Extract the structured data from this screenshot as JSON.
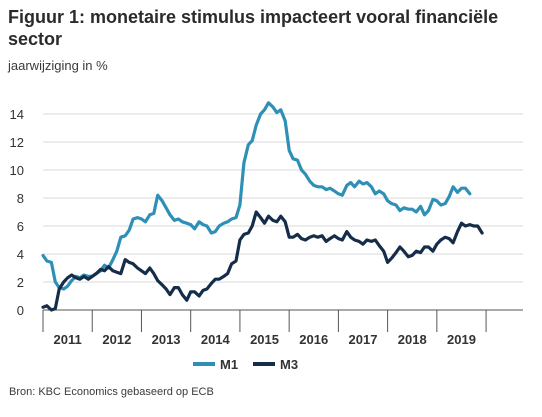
{
  "chart_data": {
    "type": "line",
    "title": "Figuur 1: monetaire stimulus impacteert vooral financiële sector",
    "subtitle": "jaarwijziging in %",
    "source": "Bron: KBC Economics gebaseerd op ECB",
    "ylim": [
      0,
      15
    ],
    "yticks": [
      "0",
      "2",
      "4",
      "6",
      "8",
      "10",
      "12",
      "14"
    ],
    "xlim": [
      2010.0,
      2019.75
    ],
    "year_labels": [
      "2011",
      "2012",
      "2013",
      "2014",
      "2015",
      "2016",
      "2017",
      "2018",
      "2019"
    ],
    "grid": "horizontal",
    "legend_position": "bottom",
    "series": [
      {
        "name": "M1",
        "color": "#2e8fb7",
        "points": [
          [
            2010.0,
            3.9
          ],
          [
            2010.08,
            3.5
          ],
          [
            2010.17,
            3.4
          ],
          [
            2010.25,
            2.0
          ],
          [
            2010.33,
            1.6
          ],
          [
            2010.42,
            1.5
          ],
          [
            2010.5,
            1.7
          ],
          [
            2010.58,
            2.1
          ],
          [
            2010.67,
            2.4
          ],
          [
            2010.75,
            2.3
          ],
          [
            2010.83,
            2.5
          ],
          [
            2010.92,
            2.4
          ],
          [
            2011.0,
            2.4
          ],
          [
            2011.08,
            2.6
          ],
          [
            2011.17,
            2.8
          ],
          [
            2011.25,
            3.2
          ],
          [
            2011.33,
            3.0
          ],
          [
            2011.42,
            3.6
          ],
          [
            2011.5,
            4.2
          ],
          [
            2011.58,
            5.2
          ],
          [
            2011.67,
            5.3
          ],
          [
            2011.75,
            5.7
          ],
          [
            2011.83,
            6.5
          ],
          [
            2011.92,
            6.6
          ],
          [
            2012.0,
            6.5
          ],
          [
            2012.08,
            6.3
          ],
          [
            2012.17,
            6.8
          ],
          [
            2012.25,
            6.9
          ],
          [
            2012.33,
            8.2
          ],
          [
            2012.42,
            7.8
          ],
          [
            2012.5,
            7.3
          ],
          [
            2012.58,
            6.8
          ],
          [
            2012.67,
            6.4
          ],
          [
            2012.75,
            6.5
          ],
          [
            2012.83,
            6.3
          ],
          [
            2012.92,
            6.2
          ],
          [
            2013.0,
            6.1
          ],
          [
            2013.08,
            5.8
          ],
          [
            2013.17,
            6.3
          ],
          [
            2013.25,
            6.1
          ],
          [
            2013.33,
            6.0
          ],
          [
            2013.42,
            5.5
          ],
          [
            2013.5,
            5.6
          ],
          [
            2013.58,
            6.0
          ],
          [
            2013.67,
            6.2
          ],
          [
            2013.75,
            6.3
          ],
          [
            2013.83,
            6.5
          ],
          [
            2013.92,
            6.6
          ],
          [
            2014.0,
            7.5
          ],
          [
            2014.08,
            10.5
          ],
          [
            2014.17,
            11.8
          ],
          [
            2014.25,
            12.1
          ],
          [
            2014.33,
            13.2
          ],
          [
            2014.42,
            14.0
          ],
          [
            2014.5,
            14.3
          ],
          [
            2014.58,
            14.8
          ],
          [
            2014.67,
            14.5
          ],
          [
            2014.75,
            14.1
          ],
          [
            2014.83,
            14.3
          ],
          [
            2014.92,
            13.5
          ],
          [
            2015.0,
            11.4
          ],
          [
            2015.08,
            10.8
          ],
          [
            2015.17,
            10.7
          ],
          [
            2015.25,
            10.0
          ],
          [
            2015.33,
            9.7
          ],
          [
            2015.42,
            9.2
          ],
          [
            2015.5,
            8.9
          ],
          [
            2015.58,
            8.8
          ],
          [
            2015.67,
            8.8
          ],
          [
            2015.75,
            8.6
          ],
          [
            2015.83,
            8.7
          ],
          [
            2015.92,
            8.5
          ],
          [
            2016.0,
            8.3
          ],
          [
            2016.08,
            8.2
          ],
          [
            2016.17,
            8.9
          ],
          [
            2016.25,
            9.1
          ],
          [
            2016.33,
            8.8
          ],
          [
            2016.42,
            9.2
          ],
          [
            2016.5,
            9.0
          ],
          [
            2016.58,
            9.1
          ],
          [
            2016.67,
            8.8
          ],
          [
            2016.75,
            8.3
          ],
          [
            2016.83,
            8.5
          ],
          [
            2016.92,
            8.3
          ],
          [
            2017.0,
            7.8
          ],
          [
            2017.08,
            7.6
          ],
          [
            2017.17,
            7.5
          ],
          [
            2017.25,
            7.1
          ],
          [
            2017.33,
            7.3
          ],
          [
            2017.42,
            7.2
          ],
          [
            2017.5,
            7.2
          ],
          [
            2017.58,
            7.0
          ],
          [
            2017.67,
            7.4
          ],
          [
            2017.75,
            6.8
          ],
          [
            2017.83,
            7.1
          ],
          [
            2017.92,
            7.9
          ],
          [
            2018.0,
            7.8
          ],
          [
            2018.08,
            7.5
          ],
          [
            2018.17,
            7.6
          ],
          [
            2018.25,
            8.1
          ],
          [
            2018.33,
            8.8
          ],
          [
            2018.42,
            8.4
          ],
          [
            2018.5,
            8.7
          ],
          [
            2018.58,
            8.7
          ],
          [
            2018.67,
            8.3
          ]
        ]
      },
      {
        "name": "M3",
        "color": "#162d4a",
        "points": [
          [
            2010.0,
            0.2
          ],
          [
            2010.08,
            0.3
          ],
          [
            2010.17,
            0.0
          ],
          [
            2010.25,
            0.1
          ],
          [
            2010.33,
            1.5
          ],
          [
            2010.42,
            2.0
          ],
          [
            2010.5,
            2.3
          ],
          [
            2010.58,
            2.5
          ],
          [
            2010.67,
            2.3
          ],
          [
            2010.75,
            2.2
          ],
          [
            2010.83,
            2.4
          ],
          [
            2010.92,
            2.2
          ],
          [
            2011.0,
            2.4
          ],
          [
            2011.08,
            2.6
          ],
          [
            2011.17,
            2.9
          ],
          [
            2011.25,
            2.8
          ],
          [
            2011.33,
            3.1
          ],
          [
            2011.42,
            2.8
          ],
          [
            2011.5,
            2.7
          ],
          [
            2011.58,
            2.6
          ],
          [
            2011.67,
            3.6
          ],
          [
            2011.75,
            3.4
          ],
          [
            2011.83,
            3.3
          ],
          [
            2011.92,
            3.0
          ],
          [
            2012.0,
            2.8
          ],
          [
            2012.08,
            2.6
          ],
          [
            2012.17,
            3.0
          ],
          [
            2012.25,
            2.6
          ],
          [
            2012.33,
            2.1
          ],
          [
            2012.42,
            1.8
          ],
          [
            2012.5,
            1.5
          ],
          [
            2012.58,
            1.1
          ],
          [
            2012.67,
            1.6
          ],
          [
            2012.75,
            1.6
          ],
          [
            2012.83,
            1.1
          ],
          [
            2012.92,
            0.7
          ],
          [
            2013.0,
            1.3
          ],
          [
            2013.08,
            1.3
          ],
          [
            2013.17,
            1.0
          ],
          [
            2013.25,
            1.4
          ],
          [
            2013.33,
            1.5
          ],
          [
            2013.42,
            1.9
          ],
          [
            2013.5,
            2.2
          ],
          [
            2013.58,
            2.2
          ],
          [
            2013.67,
            2.4
          ],
          [
            2013.75,
            2.6
          ],
          [
            2013.83,
            3.3
          ],
          [
            2013.92,
            3.5
          ],
          [
            2014.0,
            5.0
          ],
          [
            2014.08,
            5.4
          ],
          [
            2014.17,
            5.5
          ],
          [
            2014.25,
            6.0
          ],
          [
            2014.33,
            7.0
          ],
          [
            2014.42,
            6.6
          ],
          [
            2014.5,
            6.2
          ],
          [
            2014.58,
            6.7
          ],
          [
            2014.67,
            6.4
          ],
          [
            2014.75,
            6.3
          ],
          [
            2014.83,
            6.7
          ],
          [
            2014.92,
            6.3
          ],
          [
            2015.0,
            5.2
          ],
          [
            2015.08,
            5.2
          ],
          [
            2015.17,
            5.4
          ],
          [
            2015.25,
            5.1
          ],
          [
            2015.33,
            5.0
          ],
          [
            2015.42,
            5.2
          ],
          [
            2015.5,
            5.3
          ],
          [
            2015.58,
            5.2
          ],
          [
            2015.67,
            5.3
          ],
          [
            2015.75,
            4.9
          ],
          [
            2015.83,
            5.1
          ],
          [
            2015.92,
            5.3
          ],
          [
            2016.0,
            5.1
          ],
          [
            2016.08,
            5.0
          ],
          [
            2016.17,
            5.6
          ],
          [
            2016.25,
            5.2
          ],
          [
            2016.33,
            5.0
          ],
          [
            2016.42,
            4.9
          ],
          [
            2016.5,
            4.7
          ],
          [
            2016.58,
            5.0
          ],
          [
            2016.67,
            4.9
          ],
          [
            2016.75,
            5.0
          ],
          [
            2016.83,
            4.6
          ],
          [
            2016.92,
            4.2
          ],
          [
            2017.0,
            3.4
          ],
          [
            2017.08,
            3.7
          ],
          [
            2017.17,
            4.1
          ],
          [
            2017.25,
            4.5
          ],
          [
            2017.33,
            4.2
          ],
          [
            2017.42,
            3.8
          ],
          [
            2017.5,
            3.9
          ],
          [
            2017.58,
            4.2
          ],
          [
            2017.67,
            4.1
          ],
          [
            2017.75,
            4.5
          ],
          [
            2017.83,
            4.5
          ],
          [
            2017.92,
            4.2
          ],
          [
            2018.0,
            4.7
          ],
          [
            2018.08,
            5.0
          ],
          [
            2018.17,
            5.2
          ],
          [
            2018.25,
            5.1
          ],
          [
            2018.33,
            4.8
          ],
          [
            2018.42,
            5.6
          ],
          [
            2018.5,
            6.2
          ],
          [
            2018.58,
            6.0
          ],
          [
            2018.67,
            6.1
          ],
          [
            2018.75,
            6.0
          ],
          [
            2018.83,
            6.0
          ],
          [
            2018.92,
            5.5
          ]
        ]
      }
    ]
  }
}
